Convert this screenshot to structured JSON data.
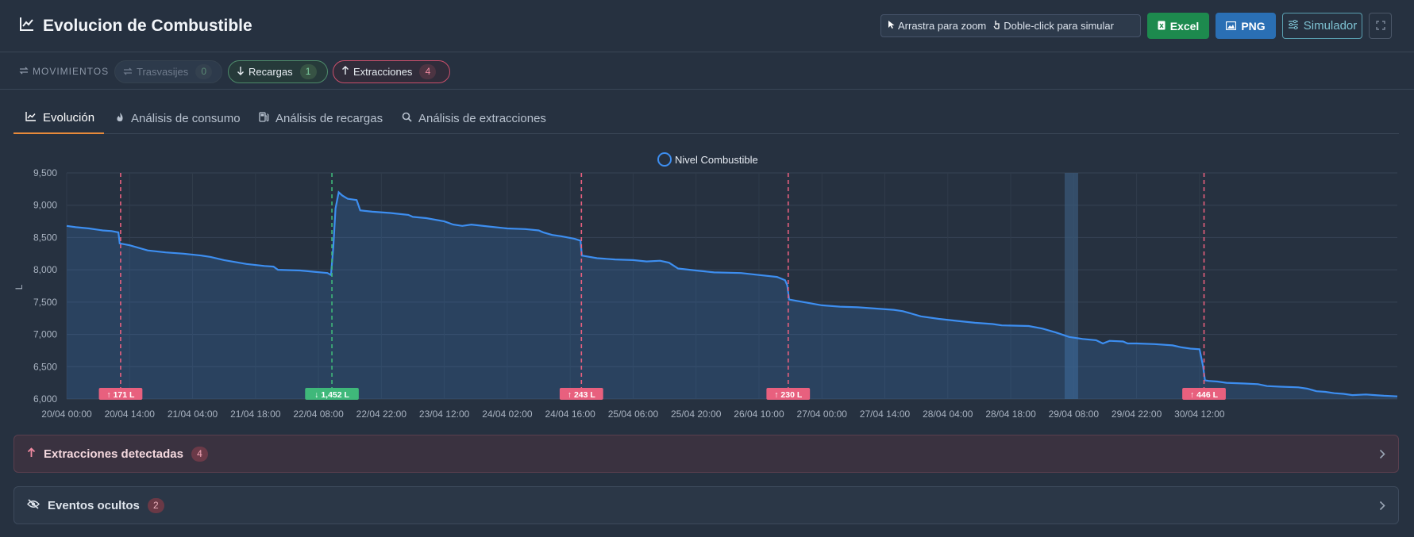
{
  "header": {
    "title": "Evolucion de Combustible",
    "hint_zoom": "Arrastra para zoom",
    "hint_sim": "Doble-click para simular",
    "excel_label": "Excel",
    "png_label": "PNG",
    "simulator_label": "Simulador"
  },
  "movements": {
    "label": "MOVIMIENTOS",
    "trasvasijes_label": "Trasvasijes",
    "trasvasijes_count": "0",
    "recargas_label": "Recargas",
    "recargas_count": "1",
    "extracciones_label": "Extracciones",
    "extracciones_count": "4"
  },
  "tabs": [
    "Evolución",
    "Análisis de consumo",
    "Análisis de recargas",
    "Análisis de extracciones"
  ],
  "colors": {
    "line": "#3d8ef0",
    "extraction": "#e8607e",
    "recharge": "#3fb87a",
    "tab_active": "#e88a3a"
  },
  "chart_data": {
    "type": "area",
    "legend": "Nivel Combustible",
    "legend_position": "top-center",
    "ylabel": "L",
    "ylim": [
      6000,
      9500
    ],
    "yticks": [
      "9,500",
      "9,000",
      "8,500",
      "8,000",
      "7,500",
      "7,000",
      "6,500",
      "6,000"
    ],
    "xticks": [
      "20/04 00:00",
      "20/04 14:00",
      "21/04 04:00",
      "21/04 18:00",
      "22/04 08:00",
      "22/04 22:00",
      "23/04 12:00",
      "24/04 02:00",
      "24/04 16:00",
      "25/04 06:00",
      "25/04 20:00",
      "26/04 10:00",
      "27/04 00:00",
      "27/04 14:00",
      "28/04 04:00",
      "28/04 18:00",
      "29/04 08:00",
      "29/04 22:00",
      "30/04 12:00"
    ],
    "series": [
      {
        "name": "Nivel Combustible",
        "points": [
          [
            0,
            8680
          ],
          [
            2,
            8660
          ],
          [
            5,
            8640
          ],
          [
            8,
            8610
          ],
          [
            10,
            8600
          ],
          [
            11.5,
            8580
          ],
          [
            11.8,
            8410
          ],
          [
            14,
            8380
          ],
          [
            18,
            8300
          ],
          [
            22,
            8270
          ],
          [
            26,
            8250
          ],
          [
            30,
            8220
          ],
          [
            32,
            8200
          ],
          [
            35,
            8150
          ],
          [
            40,
            8090
          ],
          [
            44,
            8060
          ],
          [
            46,
            8050
          ],
          [
            47,
            8000
          ],
          [
            52,
            7990
          ],
          [
            55,
            7970
          ],
          [
            58,
            7950
          ],
          [
            58.8,
            7920
          ],
          [
            59.3,
            8350
          ],
          [
            59.8,
            8950
          ],
          [
            60.5,
            9200
          ],
          [
            61.3,
            9150
          ],
          [
            62.5,
            9100
          ],
          [
            64.5,
            9080
          ],
          [
            65.3,
            8920
          ],
          [
            68,
            8900
          ],
          [
            72,
            8880
          ],
          [
            76,
            8850
          ],
          [
            77,
            8820
          ],
          [
            80,
            8800
          ],
          [
            84,
            8750
          ],
          [
            86,
            8700
          ],
          [
            88,
            8680
          ],
          [
            90,
            8700
          ],
          [
            94,
            8670
          ],
          [
            98,
            8640
          ],
          [
            102,
            8630
          ],
          [
            105,
            8610
          ],
          [
            106,
            8580
          ],
          [
            108,
            8540
          ],
          [
            110,
            8520
          ],
          [
            113,
            8480
          ],
          [
            114.3,
            8450
          ],
          [
            114.6,
            8220
          ],
          [
            118,
            8180
          ],
          [
            122,
            8160
          ],
          [
            126,
            8150
          ],
          [
            129,
            8130
          ],
          [
            132,
            8140
          ],
          [
            134,
            8110
          ],
          [
            136,
            8020
          ],
          [
            140,
            7990
          ],
          [
            144,
            7960
          ],
          [
            150,
            7950
          ],
          [
            154,
            7920
          ],
          [
            158,
            7890
          ],
          [
            159.8,
            7840
          ],
          [
            160.3,
            7760
          ],
          [
            160.7,
            7540
          ],
          [
            164,
            7500
          ],
          [
            168,
            7450
          ],
          [
            172,
            7430
          ],
          [
            176,
            7420
          ],
          [
            180,
            7400
          ],
          [
            184,
            7380
          ],
          [
            186,
            7360
          ],
          [
            188,
            7320
          ],
          [
            190,
            7280
          ],
          [
            194,
            7240
          ],
          [
            198,
            7210
          ],
          [
            202,
            7180
          ],
          [
            206,
            7160
          ],
          [
            208,
            7140
          ],
          [
            214,
            7130
          ],
          [
            217,
            7090
          ],
          [
            220,
            7030
          ],
          [
            223,
            6960
          ],
          [
            226,
            6930
          ],
          [
            229,
            6910
          ],
          [
            230.5,
            6860
          ],
          [
            232,
            6900
          ],
          [
            235,
            6890
          ],
          [
            236,
            6860
          ],
          [
            238,
            6860
          ],
          [
            242,
            6850
          ],
          [
            246,
            6830
          ],
          [
            248,
            6800
          ],
          [
            250,
            6780
          ],
          [
            252,
            6770
          ],
          [
            252.8,
            6500
          ],
          [
            253.2,
            6290
          ],
          [
            254,
            6280
          ],
          [
            256,
            6270
          ],
          [
            258,
            6250
          ],
          [
            262,
            6240
          ],
          [
            265,
            6230
          ],
          [
            267,
            6200
          ],
          [
            270,
            6190
          ],
          [
            274,
            6180
          ],
          [
            276,
            6160
          ],
          [
            278,
            6120
          ],
          [
            280,
            6110
          ],
          [
            282,
            6090
          ],
          [
            284,
            6080
          ],
          [
            286,
            6060
          ],
          [
            289,
            6070
          ],
          [
            291,
            6060
          ],
          [
            293,
            6050
          ],
          [
            296,
            6040
          ]
        ]
      }
    ],
    "events": [
      {
        "type": "extraction",
        "x_hours": 12,
        "label": "↑ 171 L"
      },
      {
        "type": "recharge",
        "x_hours": 59,
        "label": "↓ 1,452 L"
      },
      {
        "type": "extraction",
        "x_hours": 114.5,
        "label": "↑ 243 L"
      },
      {
        "type": "extraction",
        "x_hours": 160.5,
        "label": "↑ 230 L"
      },
      {
        "type": "extraction",
        "x_hours": 253,
        "label": "↑ 446 L"
      }
    ],
    "highlight_band_hours": [
      222,
      225
    ]
  },
  "panels": {
    "extractions_title": "Extracciones detectadas",
    "extractions_count": "4",
    "hidden_title": "Eventos ocultos",
    "hidden_count": "2"
  }
}
